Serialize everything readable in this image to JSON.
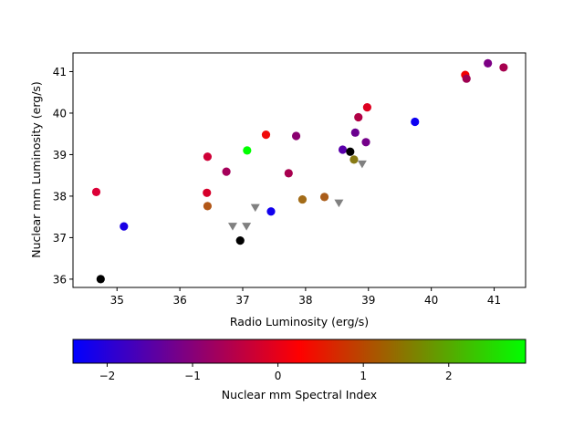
{
  "chart_data": {
    "type": "scatter",
    "xlabel": "Radio Luminosity (erg/s)",
    "ylabel": "Nuclear mm Luminosity (erg/s)",
    "xlim": [
      34.3,
      41.5
    ],
    "ylim": [
      35.8,
      41.45
    ],
    "xticks": [
      35,
      36,
      37,
      38,
      39,
      40,
      41
    ],
    "yticks": [
      36,
      37,
      38,
      39,
      40,
      41
    ],
    "grid": false,
    "colorbar": {
      "label": "Nuclear mm Spectral Index",
      "range": [
        -2.4,
        2.9
      ],
      "ticks": [
        -2,
        -1,
        0,
        1,
        2
      ],
      "tick_labels": [
        "−2",
        "−1",
        "0",
        "1",
        "2"
      ],
      "colormap": [
        "#0000ff",
        "#ff0000",
        "#00ff00"
      ],
      "placement": "bottom"
    },
    "points": [
      {
        "x": 34.74,
        "y": 36.0,
        "color": "#000000"
      },
      {
        "x": 34.67,
        "y": 38.1,
        "color": "#dc0037"
      },
      {
        "x": 35.11,
        "y": 37.27,
        "color": "#1a00e5"
      },
      {
        "x": 36.43,
        "y": 38.08,
        "color": "#d6002b"
      },
      {
        "x": 36.44,
        "y": 38.95,
        "color": "#cf0037"
      },
      {
        "x": 36.44,
        "y": 37.76,
        "color": "#b15718"
      },
      {
        "x": 36.74,
        "y": 38.59,
        "color": "#a5005a"
      },
      {
        "x": 36.96,
        "y": 36.93,
        "color": "#000000"
      },
      {
        "x": 37.07,
        "y": 39.1,
        "color": "#00ff00"
      },
      {
        "x": 37.37,
        "y": 39.48,
        "color": "#f00a0a"
      },
      {
        "x": 37.45,
        "y": 37.63,
        "color": "#1100ee"
      },
      {
        "x": 37.73,
        "y": 38.55,
        "color": "#a8004f"
      },
      {
        "x": 37.85,
        "y": 39.45,
        "color": "#8a0070"
      },
      {
        "x": 37.95,
        "y": 37.92,
        "color": "#a36c18"
      },
      {
        "x": 38.3,
        "y": 37.98,
        "color": "#aa5d1a"
      },
      {
        "x": 38.59,
        "y": 39.12,
        "color": "#5a00aa"
      },
      {
        "x": 38.71,
        "y": 39.07,
        "color": "#000000"
      },
      {
        "x": 38.77,
        "y": 38.88,
        "color": "#887a14"
      },
      {
        "x": 38.79,
        "y": 39.53,
        "color": "#6a008f"
      },
      {
        "x": 38.84,
        "y": 39.9,
        "color": "#b00045"
      },
      {
        "x": 38.96,
        "y": 39.3,
        "color": "#75008a"
      },
      {
        "x": 38.98,
        "y": 40.14,
        "color": "#de0020"
      },
      {
        "x": 39.74,
        "y": 39.79,
        "color": "#0d00f2"
      },
      {
        "x": 40.54,
        "y": 40.92,
        "color": "#f20000"
      },
      {
        "x": 40.56,
        "y": 40.83,
        "color": "#9e0050"
      },
      {
        "x": 40.9,
        "y": 41.2,
        "color": "#7d0085"
      },
      {
        "x": 41.15,
        "y": 41.1,
        "color": "#a6004e"
      }
    ],
    "upper_limits": [
      {
        "x": 36.84,
        "y": 37.27
      },
      {
        "x": 37.06,
        "y": 37.27
      },
      {
        "x": 37.2,
        "y": 37.72
      },
      {
        "x": 38.53,
        "y": 37.83
      },
      {
        "x": 38.9,
        "y": 38.77
      }
    ],
    "upper_limit_color": "#808080"
  }
}
